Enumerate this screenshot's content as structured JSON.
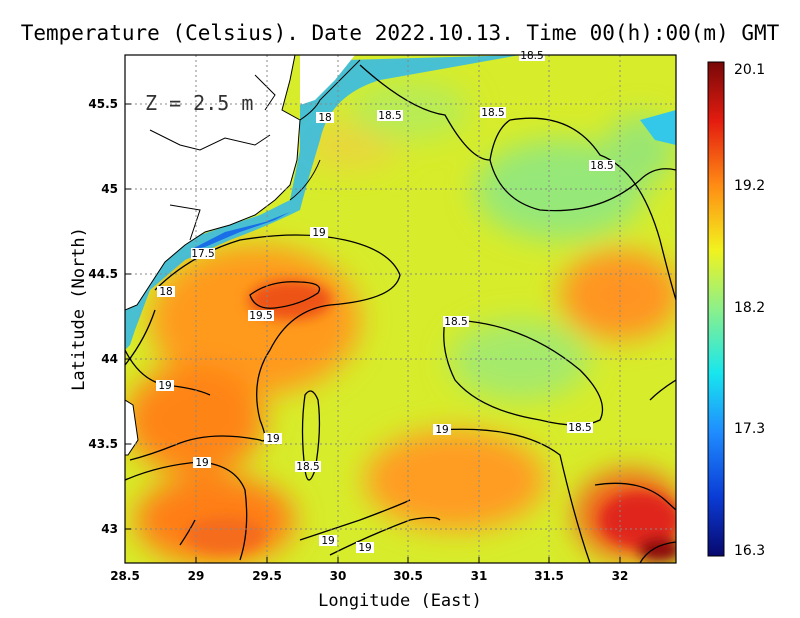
{
  "title": "Temperature (Celsius). Date 2022.10.13. Time 00(h):00(m) GMT",
  "depth_label": "Z = 2.5 m",
  "x_axis": {
    "label": "Longitude (East)",
    "ticks": [
      "28.5",
      "29",
      "29.5",
      "30",
      "30.5",
      "31",
      "31.5",
      "32"
    ]
  },
  "y_axis": {
    "label": "Latitude (North)",
    "ticks": [
      "43",
      "43.5",
      "44",
      "44.5",
      "45",
      "45.5"
    ]
  },
  "colorbar": {
    "ticks": [
      "20.1",
      "19.2",
      "18.2",
      "17.3",
      "16.3"
    ],
    "min": 16.3,
    "max": 20.1,
    "colors": [
      "#08086e",
      "#0a3cd6",
      "#1f8cff",
      "#18e6ee",
      "#8cf08a",
      "#f2f21e",
      "#ff8c14",
      "#e41c10",
      "#780808"
    ]
  },
  "contour_labels": [
    "18.5",
    "18.5",
    "18.5",
    "18",
    "17.5",
    "18",
    "19",
    "19.5",
    "18.5",
    "19",
    "19",
    "19",
    "18.5",
    "19",
    "18.5",
    "19",
    "19"
  ],
  "chart_data": {
    "type": "heatmap",
    "title": "Temperature (Celsius). Date 2022.10.13. Time 00(h):00(m) GMT",
    "xlabel": "Longitude (East)",
    "ylabel": "Latitude (North)",
    "xlim": [
      28.5,
      32.4
    ],
    "ylim": [
      42.8,
      45.8
    ],
    "value_range": [
      16.3,
      20.1
    ],
    "contour_levels": [
      17.5,
      18,
      18.5,
      19,
      19.5
    ],
    "grid": true
  }
}
